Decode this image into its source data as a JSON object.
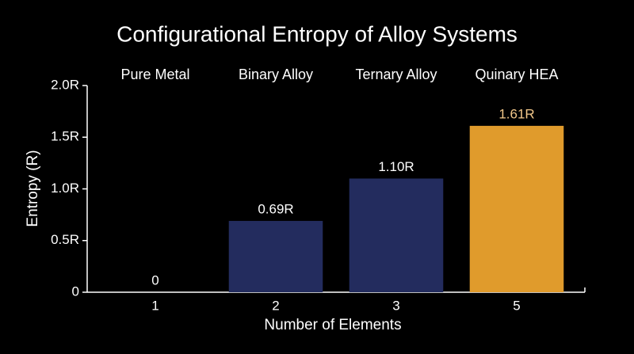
{
  "chart_data": {
    "type": "bar",
    "title": "Configurational Entropy of Alloy Systems",
    "xlabel": "Number of Elements",
    "ylabel": "Entropy (R)",
    "categories": [
      "1",
      "2",
      "3",
      "5"
    ],
    "groups": [
      "Pure Metal",
      "Binary Alloy",
      "Ternary Alloy",
      "Quinary HEA"
    ],
    "values": [
      0,
      0.69,
      1.1,
      1.61
    ],
    "value_labels": [
      "0",
      "0.69R",
      "1.10R",
      "1.61R"
    ],
    "colors": [
      "#232c5e",
      "#232c5e",
      "#232c5e",
      "#e09b2c"
    ],
    "value_label_colors": [
      "#ffffff",
      "#ffffff",
      "#ffffff",
      "#f3c88a"
    ],
    "ylim": [
      0,
      2.0
    ],
    "yticks": [
      0,
      {
        "value": 0.5,
        "label": "0.5R"
      },
      {
        "value": 1.0,
        "label": "1.0R"
      },
      {
        "value": 1.5,
        "label": "1.5R"
      },
      {
        "value": 2.0,
        "label": "2.0R"
      }
    ],
    "grid": false
  }
}
